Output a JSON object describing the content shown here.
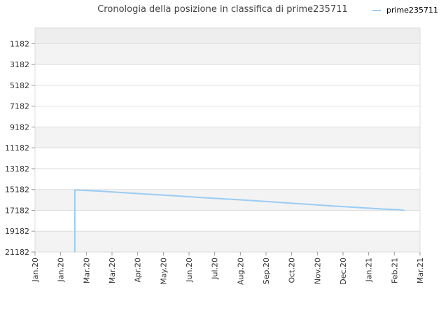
{
  "chart_data": {
    "type": "line",
    "title": "Cronologia della posizione in classifica di prime235711",
    "xlabel": "",
    "ylabel": "",
    "y_inverted": true,
    "ylim": [
      21182,
      -318
    ],
    "y_ticks": [
      "1182",
      "3182",
      "5182",
      "7182",
      "9182",
      "11182",
      "13182",
      "15182",
      "17182",
      "19182",
      "21182"
    ],
    "x_ticks": [
      "Jan.20",
      "Jan.20",
      "Mar.20",
      "Mar.20",
      "Apr.20",
      "May.20",
      "Jun.20",
      "Jul.20",
      "Aug.20",
      "Sep.20",
      "Oct.20",
      "Nov.20",
      "Dec.20",
      "Jan.21",
      "Feb.21",
      "Mar.21"
    ],
    "legend": {
      "position": "top-right",
      "label": "prime235711"
    },
    "grid": true,
    "series": [
      {
        "name": "prime235711",
        "color": "#99ccf5",
        "x": [
          1.55,
          1.55,
          1.6,
          2.5,
          3.5,
          4.5,
          5.5,
          6.5,
          7.5,
          8.5,
          9.5,
          10.5,
          11.5,
          12.5,
          13.5,
          14.2,
          14.4
        ],
        "values": [
          21182,
          15250,
          15230,
          15340,
          15500,
          15650,
          15800,
          15960,
          16100,
          16250,
          16420,
          16580,
          16750,
          16900,
          17050,
          17130,
          17180
        ]
      }
    ]
  }
}
